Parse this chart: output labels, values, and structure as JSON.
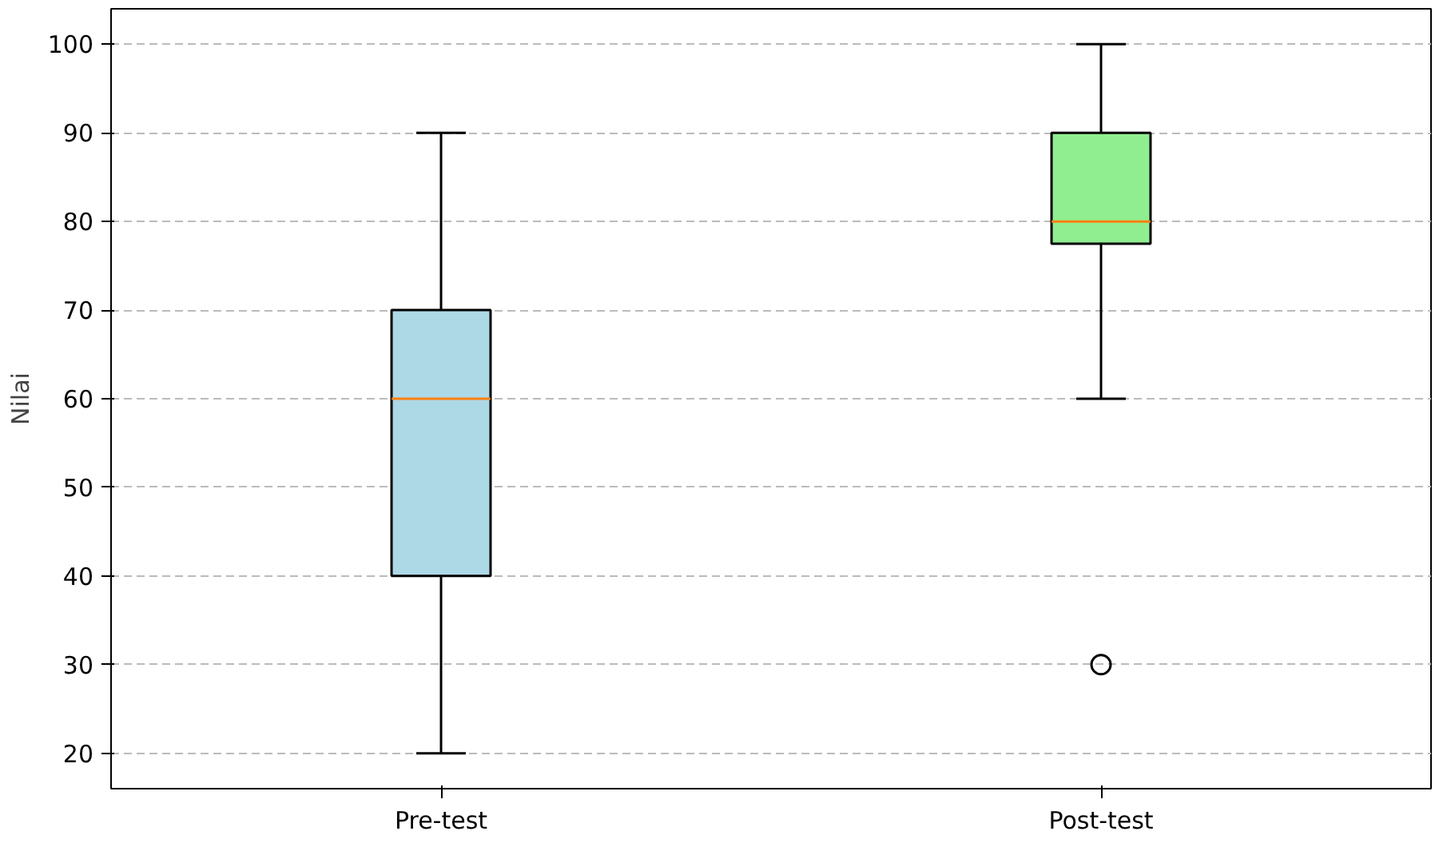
{
  "chart_data": {
    "type": "box",
    "ylabel": "Nilai",
    "categories": [
      "Pre-test",
      "Post-test"
    ],
    "colors": [
      "#add8e6",
      "#90ee90"
    ],
    "boxes": [
      {
        "low": 20,
        "q1": 40,
        "median": 60,
        "q3": 70,
        "high": 90
      },
      {
        "low": 60,
        "q1": 77.5,
        "median": 80,
        "q3": 90,
        "high": 100,
        "outliers": [
          30
        ]
      }
    ],
    "ylim": [
      16,
      104
    ],
    "yticks": [
      20,
      30,
      40,
      50,
      60,
      70,
      80,
      90,
      100
    ],
    "grid": "y"
  }
}
